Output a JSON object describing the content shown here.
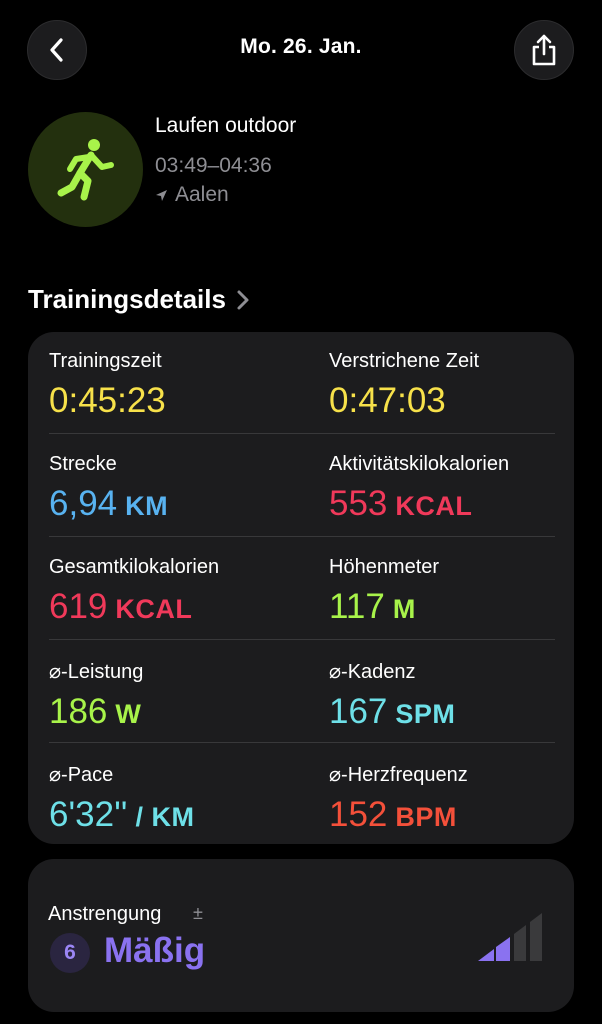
{
  "header": {
    "date": "Mo. 26. Jan.",
    "back_icon": "chevron-left-icon",
    "share_icon": "share-icon"
  },
  "workout": {
    "title": "Laufen outdoor",
    "time_range": "03:49–04:36",
    "location": "Aalen",
    "icon": "running-figure-icon",
    "accent_color": "#a8f34a"
  },
  "section": {
    "title": "Trainingsdetails"
  },
  "metrics": [
    {
      "label": "Trainingszeit",
      "value": "0:45:23",
      "unit": "",
      "color": "#f7e14a"
    },
    {
      "label": "Verstrichene Zeit",
      "value": "0:47:03",
      "unit": "",
      "color": "#f7e14a"
    },
    {
      "label": "Strecke",
      "value": "6,94",
      "unit": "KM",
      "color": "#58b2f0"
    },
    {
      "label": "Aktivitätskilokalorien",
      "value": "553",
      "unit": "KCAL",
      "color": "#f0395a"
    },
    {
      "label": "Gesamtkilokalorien",
      "value": "619",
      "unit": "KCAL",
      "color": "#f0395a"
    },
    {
      "label": "Höhenmeter",
      "value": "117",
      "unit": "M",
      "color": "#a8f34a"
    },
    {
      "label": "⌀-Leistung",
      "value": "186",
      "unit": "W",
      "color": "#a8f34a"
    },
    {
      "label": "⌀-Kadenz",
      "value": "167",
      "unit": "SPM",
      "color": "#6ee0e8"
    },
    {
      "label": "⌀-Pace",
      "value": "6'32''",
      "unit": "/ KM",
      "color": "#6ee0e8"
    },
    {
      "label": "⌀-Herzfrequenz",
      "value": "152",
      "unit": "BPM",
      "color": "#f4503a"
    }
  ],
  "effort": {
    "label": "Anstrengung",
    "plus_minus": "±",
    "score": "6",
    "level": "Mäßig",
    "bars_filled": 2,
    "bars_total": 4,
    "color": "#8a72f0"
  }
}
